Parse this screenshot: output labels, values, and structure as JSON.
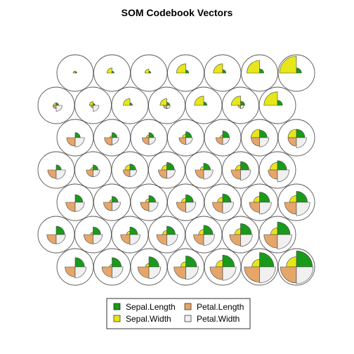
{
  "chart_data": {
    "type": "som-codebook-segments",
    "title": "SOM Codebook Vectors",
    "grid": {
      "xdim": 7,
      "ydim": 7,
      "topology": "hexagonal"
    },
    "variables": [
      "Sepal.Length",
      "Sepal.Width",
      "Petal.Length",
      "Petal.Width"
    ],
    "colors": {
      "Sepal.Length": "#1a9a1a",
      "Sepal.Width": "#e6e619",
      "Petal.Length": "#e6a66a",
      "Petal.Width": "#f0f0f0"
    },
    "legend": {
      "position": "bottom",
      "ncol": 2,
      "entries": [
        "Sepal.Length",
        "Sepal.Width",
        "Petal.Length",
        "Petal.Width"
      ]
    },
    "rows": [
      {
        "row": 1,
        "units": [
          [
            0.1,
            0.12,
            0.0,
            0.0
          ],
          [
            0.12,
            0.3,
            0.0,
            0.0
          ],
          [
            0.12,
            0.24,
            0.0,
            0.0
          ],
          [
            0.18,
            0.55,
            0.0,
            0.0
          ],
          [
            0.2,
            0.55,
            0.0,
            0.0
          ],
          [
            0.25,
            0.75,
            0.0,
            0.0
          ],
          [
            0.3,
            1.0,
            0.0,
            0.0
          ]
        ]
      },
      {
        "row": 2,
        "units": [
          [
            0.15,
            0.15,
            0.2,
            0.35
          ],
          [
            0.12,
            0.22,
            0.15,
            0.35
          ],
          [
            0.15,
            0.4,
            0.0,
            0.0
          ],
          [
            0.18,
            0.4,
            0.2,
            0.2
          ],
          [
            0.2,
            0.55,
            0.0,
            0.0
          ],
          [
            0.25,
            0.55,
            0.15,
            0.2
          ],
          [
            0.3,
            0.8,
            0.0,
            0.0
          ]
        ]
      },
      {
        "row": 3,
        "units": [
          [
            0.3,
            0.0,
            0.5,
            0.55
          ],
          [
            0.3,
            0.12,
            0.45,
            0.4
          ],
          [
            0.3,
            0.15,
            0.4,
            0.4
          ],
          [
            0.35,
            0.2,
            0.4,
            0.4
          ],
          [
            0.4,
            0.15,
            0.4,
            0.4
          ],
          [
            0.45,
            0.5,
            0.5,
            0.55
          ],
          [
            0.5,
            0.5,
            0.5,
            0.6
          ]
        ]
      },
      {
        "row": 4,
        "units": [
          [
            0.3,
            0.0,
            0.5,
            0.55
          ],
          [
            0.3,
            0.15,
            0.4,
            0.4
          ],
          [
            0.35,
            0.3,
            0.4,
            0.4
          ],
          [
            0.45,
            0.3,
            0.5,
            0.5
          ],
          [
            0.4,
            0.2,
            0.5,
            0.55
          ],
          [
            0.5,
            0.3,
            0.55,
            0.6
          ],
          [
            0.55,
            0.45,
            0.55,
            0.7
          ]
        ]
      },
      {
        "row": 5,
        "units": [
          [
            0.45,
            0.0,
            0.55,
            0.55
          ],
          [
            0.35,
            0.15,
            0.5,
            0.5
          ],
          [
            0.4,
            0.2,
            0.5,
            0.55
          ],
          [
            0.45,
            0.25,
            0.55,
            0.6
          ],
          [
            0.5,
            0.3,
            0.6,
            0.65
          ],
          [
            0.6,
            0.35,
            0.6,
            0.7
          ],
          [
            0.65,
            0.4,
            0.7,
            0.8
          ]
        ]
      },
      {
        "row": 6,
        "units": [
          [
            0.5,
            0.0,
            0.55,
            0.55
          ],
          [
            0.45,
            0.15,
            0.55,
            0.55
          ],
          [
            0.45,
            0.2,
            0.55,
            0.6
          ],
          [
            0.5,
            0.25,
            0.6,
            0.65
          ],
          [
            0.55,
            0.3,
            0.6,
            0.65
          ],
          [
            0.65,
            0.35,
            0.65,
            0.7
          ],
          [
            0.75,
            0.4,
            0.8,
            0.85
          ]
        ]
      },
      {
        "row": 7,
        "units": [
          [
            0.55,
            0.0,
            0.6,
            0.65
          ],
          [
            0.55,
            0.15,
            0.6,
            0.65
          ],
          [
            0.6,
            0.2,
            0.65,
            0.7
          ],
          [
            0.65,
            0.3,
            0.7,
            0.75
          ],
          [
            0.7,
            0.4,
            0.75,
            0.8
          ],
          [
            0.85,
            0.45,
            0.9,
            0.95
          ],
          [
            0.95,
            0.6,
            0.95,
            1.0
          ]
        ]
      }
    ]
  }
}
